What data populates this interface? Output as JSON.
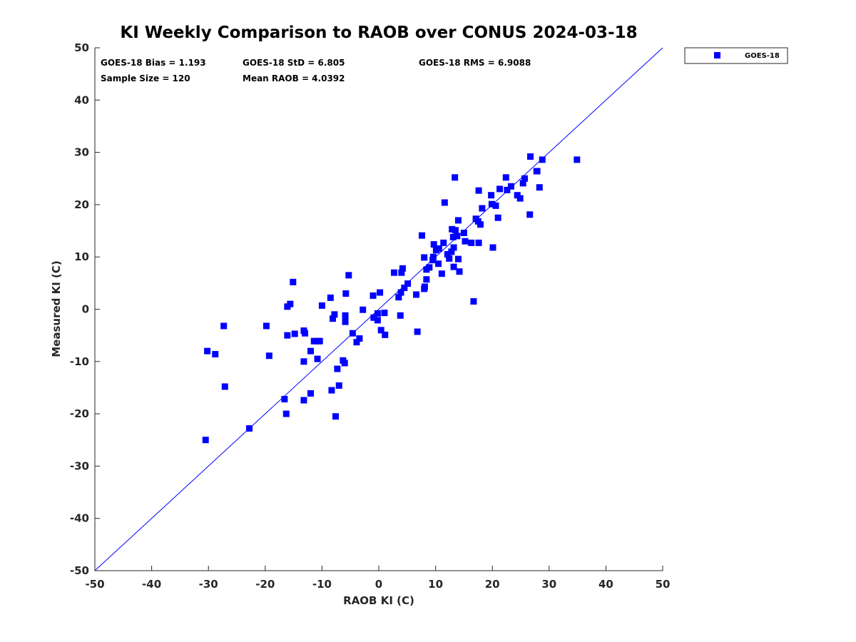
{
  "chart_data": {
    "type": "scatter",
    "title": "KI Weekly Comparison to RAOB over CONUS 2024-03-18",
    "xlabel": "RAOB KI (C)",
    "ylabel": "Measured KI (C)",
    "xlim": [
      -50,
      50
    ],
    "ylim": [
      -50,
      50
    ],
    "xticks": [
      -50,
      -40,
      -30,
      -20,
      -10,
      0,
      10,
      20,
      30,
      40,
      50
    ],
    "yticks": [
      -50,
      -40,
      -30,
      -20,
      -10,
      0,
      10,
      20,
      30,
      40,
      50
    ],
    "grid": false,
    "reference_line": {
      "name": "1:1 line",
      "from": [
        -50,
        -50
      ],
      "to": [
        50,
        50
      ],
      "color": "#0000ff"
    },
    "legend": {
      "position": "outside-top-right",
      "entries": [
        "GOES-18"
      ]
    },
    "stats": [
      {
        "label": "GOES-18 Bias = 1.193"
      },
      {
        "label": "GOES-18 StD = 6.805"
      },
      {
        "label": "GOES-18 RMS = 6.9088"
      },
      {
        "label": "Sample Size = 120"
      },
      {
        "label": "Mean RAOB = 4.0392"
      }
    ],
    "series": [
      {
        "name": "GOES-18",
        "color": "#0000ff",
        "marker": "square",
        "points": [
          [
            -30.5,
            -25.0
          ],
          [
            -30.2,
            -8.0
          ],
          [
            -28.8,
            -8.6
          ],
          [
            -27.3,
            -3.2
          ],
          [
            -27.1,
            -14.8
          ],
          [
            -22.8,
            -22.8
          ],
          [
            -19.8,
            -3.2
          ],
          [
            -19.3,
            -8.9
          ],
          [
            -16.6,
            -17.2
          ],
          [
            -16.3,
            -20.0
          ],
          [
            -16.1,
            -5.0
          ],
          [
            -16.1,
            0.5
          ],
          [
            -15.6,
            1.0
          ],
          [
            -15.1,
            5.2
          ],
          [
            -14.8,
            -4.7
          ],
          [
            -13.2,
            -17.4
          ],
          [
            -13.2,
            -10.0
          ],
          [
            -13.2,
            -4.1
          ],
          [
            -13.0,
            -4.6
          ],
          [
            -12.0,
            -16.1
          ],
          [
            -12.0,
            -8.0
          ],
          [
            -11.4,
            -6.1
          ],
          [
            -10.8,
            -6.1
          ],
          [
            -10.8,
            -9.5
          ],
          [
            -10.4,
            -6.1
          ],
          [
            -10.0,
            0.7
          ],
          [
            -8.5,
            2.2
          ],
          [
            -8.3,
            -15.5
          ],
          [
            -8.1,
            -1.8
          ],
          [
            -7.8,
            -1.0
          ],
          [
            -7.6,
            -20.5
          ],
          [
            -7.3,
            -11.4
          ],
          [
            -7.0,
            -14.6
          ],
          [
            -6.3,
            -9.8
          ],
          [
            -6.0,
            -10.3
          ],
          [
            -5.9,
            -1.2
          ],
          [
            -5.9,
            -2.4
          ],
          [
            -5.8,
            3.0
          ],
          [
            -5.3,
            6.5
          ],
          [
            -4.6,
            -4.6
          ],
          [
            -3.9,
            -6.3
          ],
          [
            -3.4,
            -5.6
          ],
          [
            -2.8,
            -0.1
          ],
          [
            -1.0,
            2.6
          ],
          [
            -0.9,
            -1.6
          ],
          [
            -0.2,
            -2.1
          ],
          [
            -0.2,
            -0.8
          ],
          [
            0.2,
            3.2
          ],
          [
            0.4,
            -4.0
          ],
          [
            1.0,
            -0.7
          ],
          [
            1.1,
            -4.9
          ],
          [
            2.7,
            7.0
          ],
          [
            3.5,
            2.3
          ],
          [
            3.8,
            -1.2
          ],
          [
            3.9,
            3.2
          ],
          [
            4.0,
            7.0
          ],
          [
            4.2,
            7.8
          ],
          [
            4.5,
            4.1
          ],
          [
            5.1,
            4.9
          ],
          [
            6.6,
            2.8
          ],
          [
            6.8,
            -4.3
          ],
          [
            7.6,
            14.1
          ],
          [
            8.0,
            3.9
          ],
          [
            8.0,
            9.9
          ],
          [
            8.1,
            4.3
          ],
          [
            8.4,
            5.7
          ],
          [
            8.4,
            7.6
          ],
          [
            8.9,
            8.0
          ],
          [
            9.5,
            9.4
          ],
          [
            9.6,
            10.0
          ],
          [
            9.7,
            12.4
          ],
          [
            10.1,
            11.3
          ],
          [
            10.5,
            8.7
          ],
          [
            10.6,
            11.6
          ],
          [
            11.1,
            6.8
          ],
          [
            11.4,
            12.7
          ],
          [
            11.6,
            20.4
          ],
          [
            12.1,
            10.5
          ],
          [
            12.4,
            9.7
          ],
          [
            12.8,
            11.0
          ],
          [
            12.9,
            15.3
          ],
          [
            13.1,
            13.8
          ],
          [
            13.2,
            8.1
          ],
          [
            13.2,
            11.8
          ],
          [
            13.4,
            25.2
          ],
          [
            13.5,
            15.1
          ],
          [
            13.8,
            14.0
          ],
          [
            14.0,
            17.0
          ],
          [
            14.0,
            9.6
          ],
          [
            14.2,
            7.2
          ],
          [
            15.0,
            14.6
          ],
          [
            15.2,
            13.0
          ],
          [
            16.3,
            12.7
          ],
          [
            16.7,
            1.5
          ],
          [
            17.1,
            17.3
          ],
          [
            17.5,
            16.8
          ],
          [
            17.6,
            22.7
          ],
          [
            17.6,
            12.7
          ],
          [
            17.9,
            16.2
          ],
          [
            18.2,
            19.3
          ],
          [
            19.8,
            21.8
          ],
          [
            19.9,
            20.1
          ],
          [
            20.1,
            11.8
          ],
          [
            20.6,
            19.8
          ],
          [
            21.0,
            17.5
          ],
          [
            21.3,
            23.0
          ],
          [
            22.4,
            25.2
          ],
          [
            22.6,
            22.8
          ],
          [
            23.3,
            23.5
          ],
          [
            24.4,
            21.8
          ],
          [
            24.9,
            21.2
          ],
          [
            25.4,
            24.1
          ],
          [
            25.7,
            25.0
          ],
          [
            26.6,
            18.1
          ],
          [
            26.7,
            29.2
          ],
          [
            27.8,
            26.4
          ],
          [
            28.3,
            23.3
          ],
          [
            28.8,
            28.6
          ],
          [
            34.9,
            28.6
          ],
          [
            27.9,
            26.4
          ]
        ]
      }
    ]
  }
}
